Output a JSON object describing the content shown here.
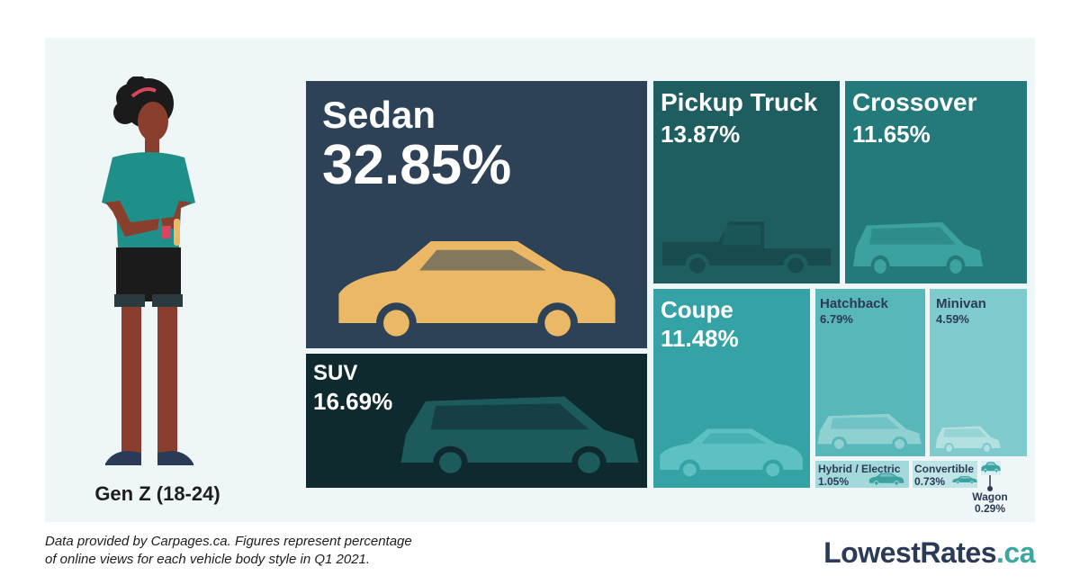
{
  "person": {
    "label": "Gen Z (18-24)"
  },
  "footnote": {
    "line1": "Data provided by Carpages.ca. Figures represent percentage",
    "line2": "of online views for each vehicle body style in Q1 2021."
  },
  "brand": {
    "main": "LowestRates",
    "dot": ".",
    "suffix": "ca"
  },
  "chart_data": {
    "type": "treemap",
    "title": "",
    "items": [
      {
        "name": "Sedan",
        "value": 32.85,
        "label": "32.85%",
        "color": "#2d4157",
        "car_color": "#ebb965"
      },
      {
        "name": "SUV",
        "value": 16.69,
        "label": "16.69%",
        "color": "#0f2a2e",
        "car_color": "#1d5a5c"
      },
      {
        "name": "Pickup Truck",
        "value": 13.87,
        "label": "13.87%",
        "color": "#1e5e60",
        "car_color": "#174b4d"
      },
      {
        "name": "Crossover",
        "value": 11.65,
        "label": "11.65%",
        "color": "#247a7a",
        "car_color": "#3ba2a0"
      },
      {
        "name": "Coupe",
        "value": 11.48,
        "label": "11.48%",
        "color": "#35a3a6",
        "car_color": "#5dc0c2"
      },
      {
        "name": "Hatchback",
        "value": 6.79,
        "label": "6.79%",
        "color": "#57b7b9",
        "car_color": "#8fd0d1"
      },
      {
        "name": "Minivan",
        "value": 4.59,
        "label": "4.59%",
        "color": "#7fcacc",
        "car_color": "#b3e0e1"
      },
      {
        "name": "Hybrid / Electric",
        "value": 1.05,
        "label": "1.05%",
        "color": "#a3d9db",
        "car_color": "#3ba2a0"
      },
      {
        "name": "Convertible",
        "value": 0.73,
        "label": "0.73%",
        "color": "#bfe5e6",
        "car_color": "#3ba2a0"
      },
      {
        "name": "Wagon",
        "value": 0.29,
        "label": "0.29%",
        "color": "#d7eff0",
        "car_color": "#3ba2a0"
      }
    ]
  }
}
